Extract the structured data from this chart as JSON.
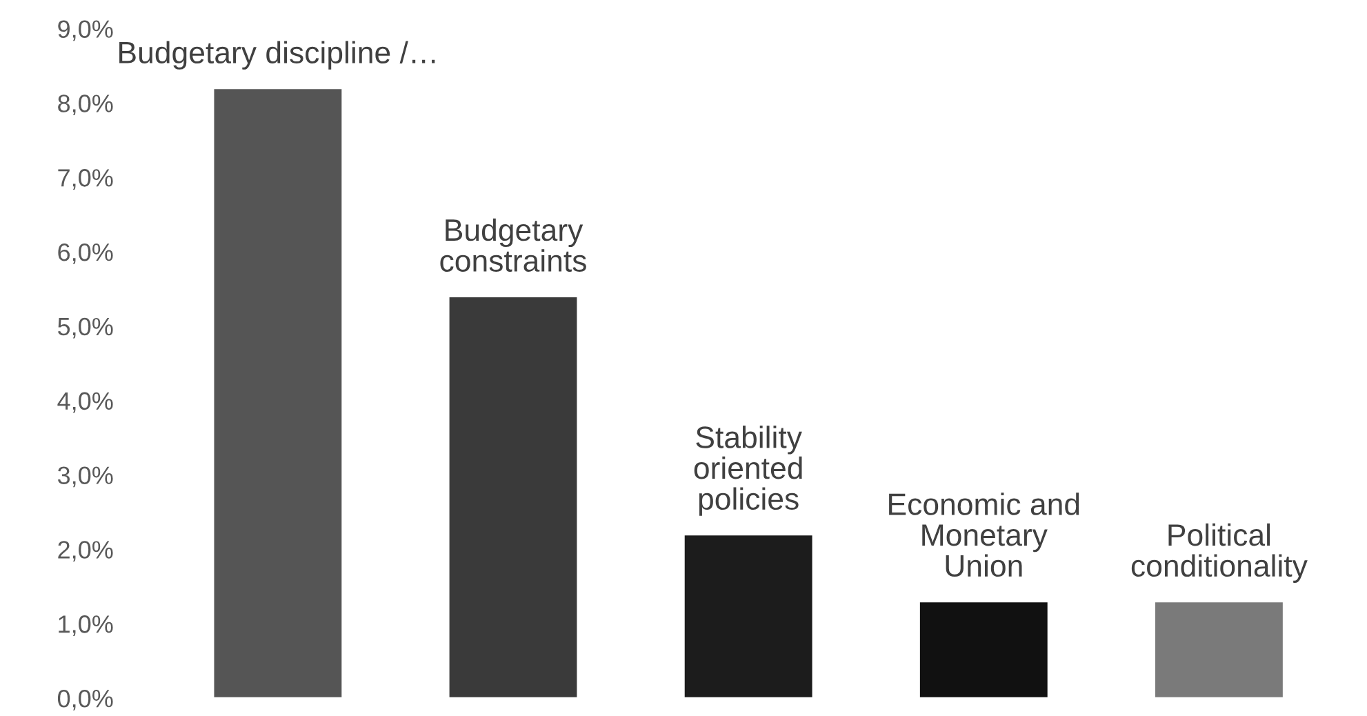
{
  "chart_data": {
    "type": "bar",
    "categories": [
      "Budgetary discipline /…",
      "Budgetary\nconstraints",
      "Stability\noriented\npolicies",
      "Economic and\nMonetary\nUnion",
      "Political\nconditionality"
    ],
    "values": [
      8.2,
      5.4,
      2.2,
      1.3,
      1.3
    ],
    "colors": [
      "#555555",
      "#3a3a3a",
      "#1c1c1c",
      "#111111",
      "#7a7a7a"
    ],
    "ylim": [
      0,
      9
    ],
    "yticks": [
      {
        "value": 0,
        "label": "0,0%"
      },
      {
        "value": 1,
        "label": "1,0%"
      },
      {
        "value": 2,
        "label": "2,0%"
      },
      {
        "value": 3,
        "label": "3,0%"
      },
      {
        "value": 4,
        "label": "4,0%"
      },
      {
        "value": 5,
        "label": "5,0%"
      },
      {
        "value": 6,
        "label": "6,0%"
      },
      {
        "value": 7,
        "label": "7,0%"
      },
      {
        "value": 8,
        "label": "8,0%"
      },
      {
        "value": 9,
        "label": "9,0%"
      }
    ],
    "grid": false
  }
}
